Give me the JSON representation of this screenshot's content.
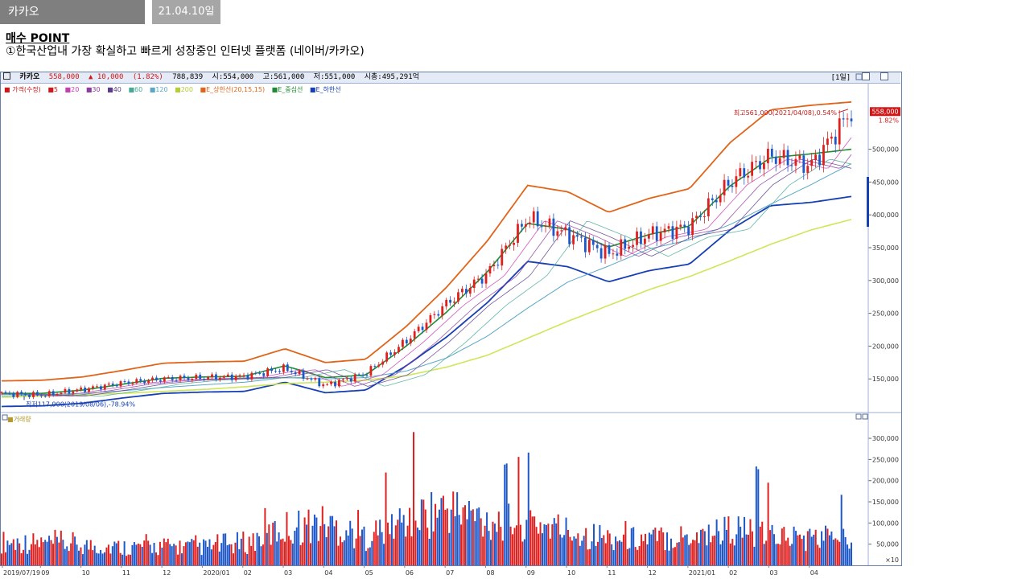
{
  "slide": {
    "tab_name": "카카오",
    "tab_date": "21.04.10일",
    "point_title": "매수 POINT",
    "point_text": "①한국산업내 가장 확실하고 빠르게 성장중인 인터넷 플랫폼 (네이버/카카오)"
  },
  "header": {
    "name": "카카오",
    "price": "558,000",
    "change": "▲ 10,000",
    "change_pct": "(1.82%)",
    "volume": "788,839",
    "open": "시:554,000",
    "high": "고:561,000",
    "low": "저:551,000",
    "amount": "시총:495,291억",
    "period": "[1일]"
  },
  "legend": {
    "price": "가격(수정)",
    "ma5": "5",
    "ma20": "20",
    "ma30": "30",
    "ma40": "40",
    "ma60": "60",
    "ma120": "120",
    "ma200": "200",
    "env_upper": "E_상한선(20,15,15)",
    "env_mid": "E_중심선",
    "env_lower": "E_하한선"
  },
  "annotations": {
    "high": "최고561,000(2021/04/08),0.54%",
    "low": "최저117,900(2019/08/06),-78.94%",
    "last_price": "558,000",
    "last_pct": "1.82%"
  },
  "volume_panel": {
    "label": "거래량",
    "unit": "×10"
  },
  "colors": {
    "up": "#e01f1f",
    "down": "#1e58c8",
    "env_upper": "#e0641a",
    "env_mid": "#1e8c32",
    "env_lower": "#1640b4",
    "ma120": "#5aa7c7",
    "ma200": "#cfe65a",
    "ma20": "#c83cb4",
    "ma30": "#8c3ca0",
    "ma40": "#5a3c8c",
    "ma60": "#46aa96"
  },
  "chart_data": [
    {
      "type": "line",
      "title": "카카오",
      "xlabel": "",
      "ylabel": "",
      "ylim": [
        100000,
        600000
      ],
      "x_ticks": [
        "2019/07/19",
        "09",
        "10",
        "11",
        "12",
        "2020/01",
        "02",
        "03",
        "04",
        "05",
        "06",
        "07",
        "08",
        "09",
        "10",
        "11",
        "12",
        "2021/01",
        "02",
        "03",
        "04"
      ],
      "y_ticks": [
        "150,000",
        "200,000",
        "250,000",
        "300,000",
        "350,000",
        "400,000",
        "450,000",
        "500,000"
      ],
      "months": [
        "2019/07",
        "2019/08",
        "2019/09",
        "2019/10",
        "2019/11",
        "2019/12",
        "2020/01",
        "2020/02",
        "2020/03",
        "2020/04",
        "2020/05",
        "2020/06",
        "2020/07",
        "2020/08",
        "2020/09",
        "2020/10",
        "2020/11",
        "2020/12",
        "2021/01",
        "2021/02",
        "2021/03",
        "2021/04"
      ],
      "series": [
        {
          "name": "가격(수정)",
          "values": [
            128000,
            125000,
            134000,
            144000,
            150000,
            152000,
            154000,
            166000,
            140000,
            158000,
            208000,
            265000,
            310000,
            395000,
            370000,
            340000,
            370000,
            382000,
            450000,
            490000,
            475000,
            558000
          ]
        },
        {
          "name": "E_상한선(20,15,15)",
          "values": [
            147000,
            148000,
            153000,
            163000,
            174000,
            176000,
            177000,
            196000,
            175000,
            180000,
            230000,
            290000,
            360000,
            445000,
            435000,
            404000,
            425000,
            440000,
            510000,
            560000,
            567000,
            572000
          ]
        },
        {
          "name": "E_중심선",
          "values": [
            128000,
            128000,
            133000,
            142000,
            151000,
            153000,
            154000,
            170000,
            152000,
            156000,
            200000,
            252000,
            313000,
            387000,
            378000,
            351000,
            370000,
            383000,
            444000,
            487000,
            493000,
            500000
          ]
        },
        {
          "name": "E_하한선",
          "values": [
            108000,
            109000,
            113000,
            121000,
            128000,
            130000,
            131000,
            145000,
            129000,
            133000,
            170000,
            214000,
            266000,
            329000,
            321000,
            298000,
            315000,
            325000,
            377000,
            414000,
            419000,
            428000
          ]
        },
        {
          "name": "120",
          "values": [
            124000,
            126000,
            128000,
            132000,
            137000,
            141000,
            145000,
            152000,
            150000,
            152000,
            162000,
            182000,
            215000,
            258000,
            298000,
            322000,
            348000,
            362000,
            385000,
            416000,
            446000,
            478000
          ]
        },
        {
          "name": "200",
          "values": [
            122000,
            124000,
            126000,
            128000,
            131000,
            134000,
            138000,
            143000,
            145000,
            148000,
            155000,
            168000,
            186000,
            212000,
            238000,
            262000,
            286000,
            306000,
            330000,
            355000,
            377000,
            393000
          ]
        }
      ],
      "high": {
        "value": 561000,
        "date": "2021/04/08"
      },
      "low": {
        "value": 117900,
        "date": "2019/08/06"
      },
      "last": 558000,
      "grid": false
    },
    {
      "type": "bar",
      "title": "거래량",
      "unit": "×10",
      "ylim": [
        0,
        340000
      ],
      "y_ticks": [
        "50,000",
        "100,000",
        "150,000",
        "200,000",
        "250,000",
        "300,000"
      ],
      "months": [
        "2019/07",
        "2019/08",
        "2019/09",
        "2019/10",
        "2019/11",
        "2019/12",
        "2020/01",
        "2020/02",
        "2020/03",
        "2020/04",
        "2020/05",
        "2020/06",
        "2020/07",
        "2020/08",
        "2020/09",
        "2020/10",
        "2020/11",
        "2020/12",
        "2021/01",
        "2021/02",
        "2021/03",
        "2021/04"
      ],
      "avg_values": [
        62000,
        58000,
        52000,
        48000,
        50000,
        48000,
        56000,
        98000,
        110000,
        75000,
        120000,
        150000,
        120000,
        118000,
        90000,
        72000,
        70000,
        78000,
        95000,
        80000,
        70000,
        85000
      ],
      "peak_values": [
        128000,
        88000,
        75000,
        72000,
        75000,
        70000,
        80000,
        188000,
        212000,
        112000,
        328000,
        255000,
        215000,
        268000,
        190000,
        108000,
        100000,
        150000,
        318000,
        188000,
        150000,
        172000
      ]
    }
  ]
}
